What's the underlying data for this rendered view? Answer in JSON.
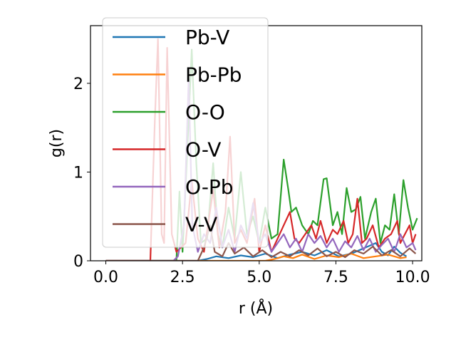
{
  "chart_data": {
    "type": "line",
    "title": "",
    "xlabel": "r (Å)",
    "ylabel": "g(r)",
    "xlim": [
      -0.5,
      10.3
    ],
    "ylim": [
      0,
      2.65
    ],
    "xticks": [
      0.0,
      2.5,
      5.0,
      7.5,
      10.0
    ],
    "xtick_labels": [
      "0.0",
      "2.5",
      "5.0",
      "7.5",
      "10.0"
    ],
    "yticks": [
      0,
      1,
      2
    ],
    "ytick_labels": [
      "0",
      "1",
      "2"
    ],
    "grid": false,
    "legend_position": "upper-left",
    "series": [
      {
        "name": "Pb-V",
        "color": "#1f77b4",
        "points": [
          [
            0,
            0
          ],
          [
            3.0,
            0
          ],
          [
            3.3,
            0.02
          ],
          [
            3.6,
            0.05
          ],
          [
            4.0,
            0.03
          ],
          [
            4.4,
            0.06
          ],
          [
            4.8,
            0.04
          ],
          [
            5.2,
            0.08
          ],
          [
            5.6,
            0.03
          ],
          [
            6.0,
            0.07
          ],
          [
            6.4,
            0.1
          ],
          [
            6.8,
            0.06
          ],
          [
            7.2,
            0.12
          ],
          [
            7.6,
            0.05
          ],
          [
            8.0,
            0.08
          ],
          [
            8.4,
            0.14
          ],
          [
            8.8,
            0.2
          ],
          [
            9.0,
            0.1
          ],
          [
            9.2,
            0.06
          ],
          [
            9.4,
            0.16
          ],
          [
            9.6,
            0.09
          ],
          [
            9.8,
            0.05
          ]
        ]
      },
      {
        "name": "Pb-Pb",
        "color": "#ff7f0e",
        "points": [
          [
            0,
            0
          ],
          [
            5.2,
            0
          ],
          [
            5.5,
            0.02
          ],
          [
            5.8,
            0.05
          ],
          [
            6.1,
            0.03
          ],
          [
            6.4,
            0.07
          ],
          [
            6.8,
            0.02
          ],
          [
            7.2,
            0.06
          ],
          [
            7.6,
            0.04
          ],
          [
            8.0,
            0.08
          ],
          [
            8.4,
            0.03
          ],
          [
            8.8,
            0.05
          ],
          [
            9.2,
            0.07
          ],
          [
            9.6,
            0.03
          ],
          [
            9.8,
            0.04
          ]
        ]
      },
      {
        "name": "O-O",
        "color": "#2ca02c",
        "points": [
          [
            0,
            0
          ],
          [
            2.3,
            0
          ],
          [
            2.4,
            0.78
          ],
          [
            2.5,
            0.1
          ],
          [
            2.65,
            1.2
          ],
          [
            2.8,
            2.38
          ],
          [
            2.95,
            1.1
          ],
          [
            3.1,
            0.2
          ],
          [
            3.3,
            0.25
          ],
          [
            3.5,
            1.1
          ],
          [
            3.65,
            0.3
          ],
          [
            3.8,
            0.15
          ],
          [
            4.0,
            0.6
          ],
          [
            4.2,
            0.25
          ],
          [
            4.4,
            1.0
          ],
          [
            4.6,
            0.3
          ],
          [
            4.8,
            0.5
          ],
          [
            5.0,
            0.2
          ],
          [
            5.2,
            0.6
          ],
          [
            5.4,
            0.25
          ],
          [
            5.6,
            0.3
          ],
          [
            5.8,
            1.14
          ],
          [
            5.95,
            0.8
          ],
          [
            6.05,
            0.55
          ],
          [
            6.2,
            0.6
          ],
          [
            6.4,
            0.4
          ],
          [
            6.6,
            0.3
          ],
          [
            6.75,
            0.45
          ],
          [
            6.9,
            0.4
          ],
          [
            7.1,
            0.92
          ],
          [
            7.2,
            0.93
          ],
          [
            7.4,
            0.4
          ],
          [
            7.55,
            0.55
          ],
          [
            7.7,
            0.3
          ],
          [
            7.85,
            0.82
          ],
          [
            8.0,
            0.55
          ],
          [
            8.15,
            0.58
          ],
          [
            8.3,
            0.72
          ],
          [
            8.45,
            0.25
          ],
          [
            8.65,
            0.55
          ],
          [
            8.8,
            0.7
          ],
          [
            8.95,
            0.2
          ],
          [
            9.1,
            0.4
          ],
          [
            9.25,
            0.35
          ],
          [
            9.4,
            0.75
          ],
          [
            9.55,
            0.3
          ],
          [
            9.7,
            0.91
          ],
          [
            9.85,
            0.6
          ],
          [
            10.0,
            0.35
          ],
          [
            10.15,
            0.48
          ]
        ]
      },
      {
        "name": "O-V",
        "color": "#d62728",
        "points": [
          [
            0,
            0
          ],
          [
            1.45,
            0
          ],
          [
            1.6,
            1.6
          ],
          [
            1.7,
            2.5
          ],
          [
            1.82,
            0.3
          ],
          [
            1.9,
            0.2
          ],
          [
            2.0,
            2.4
          ],
          [
            2.15,
            0.3
          ],
          [
            2.3,
            0.1
          ],
          [
            2.6,
            0.2
          ],
          [
            2.8,
            0.9
          ],
          [
            3.0,
            0.25
          ],
          [
            3.2,
            0.1
          ],
          [
            3.5,
            0.8
          ],
          [
            3.7,
            0.15
          ],
          [
            3.9,
            0.55
          ],
          [
            4.05,
            1.4
          ],
          [
            4.2,
            0.2
          ],
          [
            4.4,
            0.35
          ],
          [
            4.6,
            0.2
          ],
          [
            4.85,
            0.7
          ],
          [
            5.0,
            0.1
          ],
          [
            5.2,
            0.4
          ],
          [
            5.4,
            0.1
          ],
          [
            5.6,
            0.25
          ],
          [
            5.8,
            0.4
          ],
          [
            6.0,
            0.55
          ],
          [
            6.15,
            0.25
          ],
          [
            6.3,
            0.2
          ],
          [
            6.5,
            0.3
          ],
          [
            6.7,
            0.4
          ],
          [
            6.85,
            0.25
          ],
          [
            7.0,
            0.45
          ],
          [
            7.2,
            0.2
          ],
          [
            7.4,
            0.35
          ],
          [
            7.55,
            0.3
          ],
          [
            7.75,
            0.45
          ],
          [
            7.9,
            0.2
          ],
          [
            8.05,
            0.3
          ],
          [
            8.2,
            0.7
          ],
          [
            8.35,
            0.2
          ],
          [
            8.5,
            0.25
          ],
          [
            8.7,
            0.4
          ],
          [
            8.9,
            0.15
          ],
          [
            9.1,
            0.25
          ],
          [
            9.3,
            0.3
          ],
          [
            9.5,
            0.45
          ],
          [
            9.6,
            0.2
          ],
          [
            9.75,
            0.3
          ],
          [
            9.9,
            0.4
          ],
          [
            10.0,
            0.2
          ],
          [
            10.1,
            0.3
          ]
        ]
      },
      {
        "name": "O-Pb",
        "color": "#9467bd",
        "points": [
          [
            0,
            0
          ],
          [
            2.2,
            0
          ],
          [
            2.35,
            0.05
          ],
          [
            2.55,
            0.4
          ],
          [
            2.7,
            2.05
          ],
          [
            2.82,
            0.4
          ],
          [
            3.0,
            0.1
          ],
          [
            3.2,
            0.3
          ],
          [
            3.4,
            0.2
          ],
          [
            3.6,
            0.6
          ],
          [
            3.8,
            0.15
          ],
          [
            4.0,
            0.35
          ],
          [
            4.2,
            0.1
          ],
          [
            4.4,
            0.4
          ],
          [
            4.6,
            0.25
          ],
          [
            4.8,
            0.65
          ],
          [
            5.0,
            0.2
          ],
          [
            5.2,
            0.3
          ],
          [
            5.4,
            0.1
          ],
          [
            5.6,
            0.2
          ],
          [
            5.8,
            0.3
          ],
          [
            6.0,
            0.15
          ],
          [
            6.2,
            0.25
          ],
          [
            6.4,
            0.1
          ],
          [
            6.6,
            0.3
          ],
          [
            6.8,
            0.2
          ],
          [
            7.0,
            0.28
          ],
          [
            7.2,
            0.15
          ],
          [
            7.4,
            0.25
          ],
          [
            7.6,
            0.1
          ],
          [
            7.8,
            0.22
          ],
          [
            8.0,
            0.15
          ],
          [
            8.2,
            0.28
          ],
          [
            8.4,
            0.12
          ],
          [
            8.6,
            0.25
          ],
          [
            8.8,
            0.1
          ],
          [
            9.0,
            0.18
          ],
          [
            9.2,
            0.25
          ],
          [
            9.4,
            0.1
          ],
          [
            9.6,
            0.3
          ],
          [
            9.8,
            0.15
          ],
          [
            10.0,
            0.2
          ],
          [
            10.1,
            0.12
          ]
        ]
      },
      {
        "name": "V-V",
        "color": "#8c564b",
        "points": [
          [
            0,
            0
          ],
          [
            3.0,
            0
          ],
          [
            3.2,
            0.15
          ],
          [
            3.4,
            0.4
          ],
          [
            3.55,
            0.1
          ],
          [
            3.8,
            0.05
          ],
          [
            4.0,
            0.2
          ],
          [
            4.2,
            0.08
          ],
          [
            4.5,
            0.15
          ],
          [
            4.8,
            0.05
          ],
          [
            5.1,
            0.12
          ],
          [
            5.4,
            0.04
          ],
          [
            5.7,
            0.1
          ],
          [
            6.0,
            0.05
          ],
          [
            6.3,
            0.12
          ],
          [
            6.6,
            0.06
          ],
          [
            6.9,
            0.14
          ],
          [
            7.2,
            0.05
          ],
          [
            7.5,
            0.1
          ],
          [
            7.8,
            0.04
          ],
          [
            8.1,
            0.12
          ],
          [
            8.4,
            0.08
          ],
          [
            8.7,
            0.16
          ],
          [
            9.0,
            0.06
          ],
          [
            9.3,
            0.12
          ],
          [
            9.6,
            0.05
          ],
          [
            9.9,
            0.14
          ],
          [
            10.1,
            0.08
          ]
        ]
      }
    ]
  }
}
